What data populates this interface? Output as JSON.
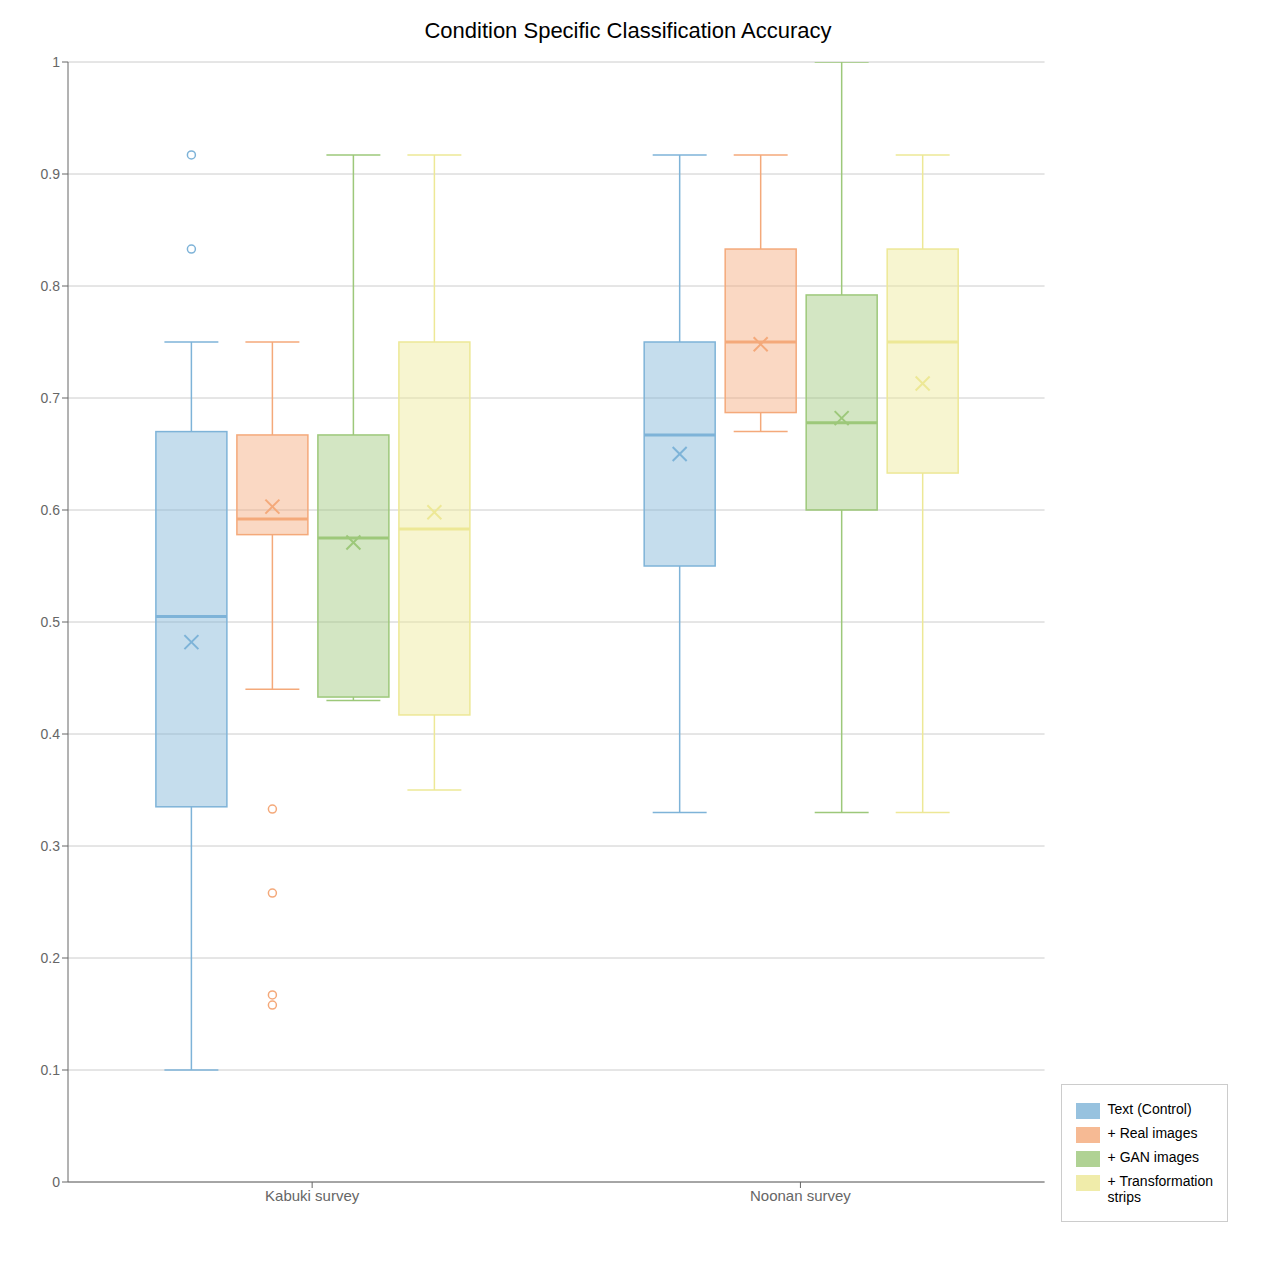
{
  "chart_data": {
    "type": "box",
    "title": "Condition Specific Classification Accuracy",
    "categories": [
      "Kabuki survey",
      "Noonan survey"
    ],
    "series": [
      {
        "name": "Text (Control)",
        "color": "#7EB3D8",
        "values": [
          {
            "whislo": 0.1,
            "q1": 0.335,
            "med": 0.505,
            "q3": 0.67,
            "whishi": 0.75,
            "mean": 0.482,
            "fliers": [
              0.833,
              0.917
            ]
          },
          {
            "whislo": 0.33,
            "q1": 0.55,
            "med": 0.667,
            "q3": 0.75,
            "whishi": 0.917,
            "mean": 0.65,
            "fliers": []
          }
        ]
      },
      {
        "name": "+ Real images",
        "color": "#F4A97A",
        "values": [
          {
            "whislo": 0.44,
            "q1": 0.578,
            "med": 0.592,
            "q3": 0.667,
            "whishi": 0.75,
            "mean": 0.603,
            "fliers": [
              0.333,
              0.258,
              0.167,
              0.158
            ]
          },
          {
            "whislo": 0.67,
            "q1": 0.687,
            "med": 0.75,
            "q3": 0.833,
            "whishi": 0.917,
            "mean": 0.748,
            "fliers": []
          }
        ]
      },
      {
        "name": "+ GAN images",
        "color": "#9DC87A",
        "values": [
          {
            "whislo": 0.43,
            "q1": 0.433,
            "med": 0.575,
            "q3": 0.667,
            "whishi": 0.917,
            "mean": 0.571,
            "fliers": []
          },
          {
            "whislo": 0.33,
            "q1": 0.6,
            "med": 0.678,
            "q3": 0.792,
            "whishi": 1.0,
            "mean": 0.682,
            "fliers": []
          }
        ]
      },
      {
        "name": "+ Transformation\nstrips",
        "color": "#EDE896",
        "values": [
          {
            "whislo": 0.35,
            "q1": 0.417,
            "med": 0.583,
            "q3": 0.75,
            "whishi": 0.917,
            "mean": 0.598,
            "fliers": []
          },
          {
            "whislo": 0.33,
            "q1": 0.633,
            "med": 0.75,
            "q3": 0.833,
            "whishi": 0.917,
            "mean": 0.713,
            "fliers": []
          }
        ]
      }
    ],
    "ylim": [
      0,
      1
    ],
    "yticks": [
      0,
      0.1,
      0.2,
      0.3,
      0.4,
      0.5,
      0.6,
      0.7,
      0.8,
      0.9,
      1
    ],
    "grid": true,
    "legend": "lower right"
  }
}
